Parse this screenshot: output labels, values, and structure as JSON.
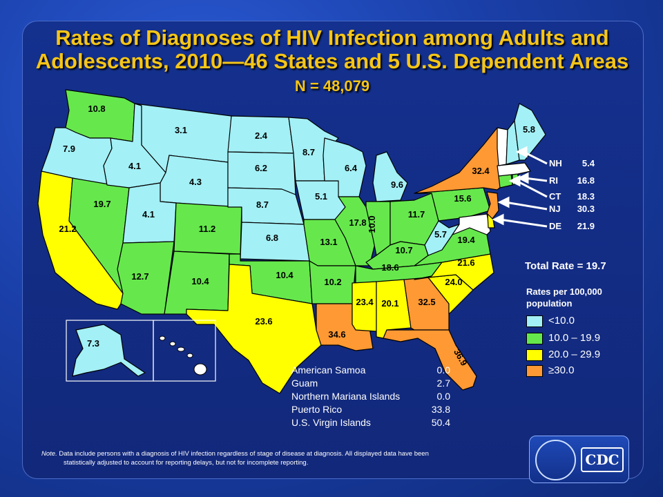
{
  "title_line1": "Rates of Diagnoses of HIV Infection among Adults and",
  "title_line2": "Adolescents, 2010—46 States and 5 U.S. Dependent Areas",
  "subtitle": "N = 48,079",
  "total_rate": "Total Rate  = 19.7",
  "legend": {
    "title_line1": "Rates per 100,000",
    "title_line2": "population",
    "items": [
      {
        "label": "<10.0",
        "color": "#a3f0f6"
      },
      {
        "label": "10.0 – 19.9",
        "color": "#66e84c"
      },
      {
        "label": "20.0 – 29.9",
        "color": "#ffff00"
      },
      {
        "label": "≥30.0",
        "color": "#ff9933"
      }
    ]
  },
  "colors": {
    "low": "#a3f0f6",
    "mid": "#66e84c",
    "high": "#ffff00",
    "top": "#ff9933",
    "nodata": "#ffffff"
  },
  "states": [
    {
      "id": "WA",
      "value": "10.8",
      "cls": "mid"
    },
    {
      "id": "OR",
      "value": "7.9",
      "cls": "low"
    },
    {
      "id": "CA",
      "value": "21.2",
      "cls": "high"
    },
    {
      "id": "NV",
      "value": "19.7",
      "cls": "mid"
    },
    {
      "id": "ID",
      "value": "4.1",
      "cls": "low"
    },
    {
      "id": "MT",
      "value": "3.1",
      "cls": "low"
    },
    {
      "id": "WY",
      "value": "4.3",
      "cls": "low"
    },
    {
      "id": "UT",
      "value": "4.1",
      "cls": "low"
    },
    {
      "id": "AZ",
      "value": "12.7",
      "cls": "mid"
    },
    {
      "id": "CO",
      "value": "11.2",
      "cls": "mid"
    },
    {
      "id": "NM",
      "value": "10.4",
      "cls": "mid"
    },
    {
      "id": "ND",
      "value": "2.4",
      "cls": "low"
    },
    {
      "id": "SD",
      "value": "6.2",
      "cls": "low"
    },
    {
      "id": "NE",
      "value": "8.7",
      "cls": "low"
    },
    {
      "id": "KS",
      "value": "6.8",
      "cls": "low"
    },
    {
      "id": "OK",
      "value": "10.4",
      "cls": "mid"
    },
    {
      "id": "TX",
      "value": "23.6",
      "cls": "high"
    },
    {
      "id": "MN",
      "value": "8.7",
      "cls": "low"
    },
    {
      "id": "IA",
      "value": "5.1",
      "cls": "low"
    },
    {
      "id": "MO",
      "value": "13.1",
      "cls": "mid"
    },
    {
      "id": "AR",
      "value": "10.2",
      "cls": "mid"
    },
    {
      "id": "LA",
      "value": "34.6",
      "cls": "top"
    },
    {
      "id": "WI",
      "value": "6.4",
      "cls": "low"
    },
    {
      "id": "IL",
      "value": "17.8",
      "cls": "mid"
    },
    {
      "id": "MI",
      "value": "9.6",
      "cls": "low"
    },
    {
      "id": "IN",
      "value": "10.0",
      "cls": "mid"
    },
    {
      "id": "OH",
      "value": "11.7",
      "cls": "mid"
    },
    {
      "id": "KY",
      "value": "10.7",
      "cls": "mid"
    },
    {
      "id": "TN",
      "value": "18.6",
      "cls": "mid"
    },
    {
      "id": "MS",
      "value": "23.4",
      "cls": "high"
    },
    {
      "id": "AL",
      "value": "20.1",
      "cls": "high"
    },
    {
      "id": "GA",
      "value": "32.5",
      "cls": "top"
    },
    {
      "id": "FL",
      "value": "36.9",
      "cls": "top"
    },
    {
      "id": "SC",
      "value": "24.0",
      "cls": "high"
    },
    {
      "id": "NC",
      "value": "21.6",
      "cls": "high"
    },
    {
      "id": "VA",
      "value": "19.4",
      "cls": "mid"
    },
    {
      "id": "WV",
      "value": "5.7",
      "cls": "low"
    },
    {
      "id": "PA",
      "value": "15.6",
      "cls": "mid"
    },
    {
      "id": "NY",
      "value": "32.4",
      "cls": "top"
    },
    {
      "id": "ME",
      "value": "5.8",
      "cls": "low"
    },
    {
      "id": "AK",
      "value": "7.3",
      "cls": "low"
    }
  ],
  "callouts": [
    {
      "id": "NH",
      "label": "NH",
      "value": "5.4"
    },
    {
      "id": "RI",
      "label": "RI",
      "value": "16.8"
    },
    {
      "id": "CT",
      "label": "CT",
      "value": "18.3"
    },
    {
      "id": "NJ",
      "label": "NJ",
      "value": "30.3"
    },
    {
      "id": "DE",
      "label": "DE",
      "value": "21.9"
    }
  ],
  "dependent_areas": [
    {
      "name": "American Samoa",
      "value": "0.0"
    },
    {
      "name": "Guam",
      "value": "2.7"
    },
    {
      "name": "Northern Mariana Islands",
      "value": "0.0"
    },
    {
      "name": "Puerto Rico",
      "value": "33.8"
    },
    {
      "name": "U.S. Virgin Islands",
      "value": "50.4"
    }
  ],
  "note": {
    "label": "Note.",
    "line1": "Data include persons with a diagnosis of HIV infection regardless of stage of disease at diagnosis. All displayed data have been",
    "line2": "statistically adjusted to account for reporting delays, but not for incomplete reporting."
  },
  "cdc_logo_text": "CDC"
}
